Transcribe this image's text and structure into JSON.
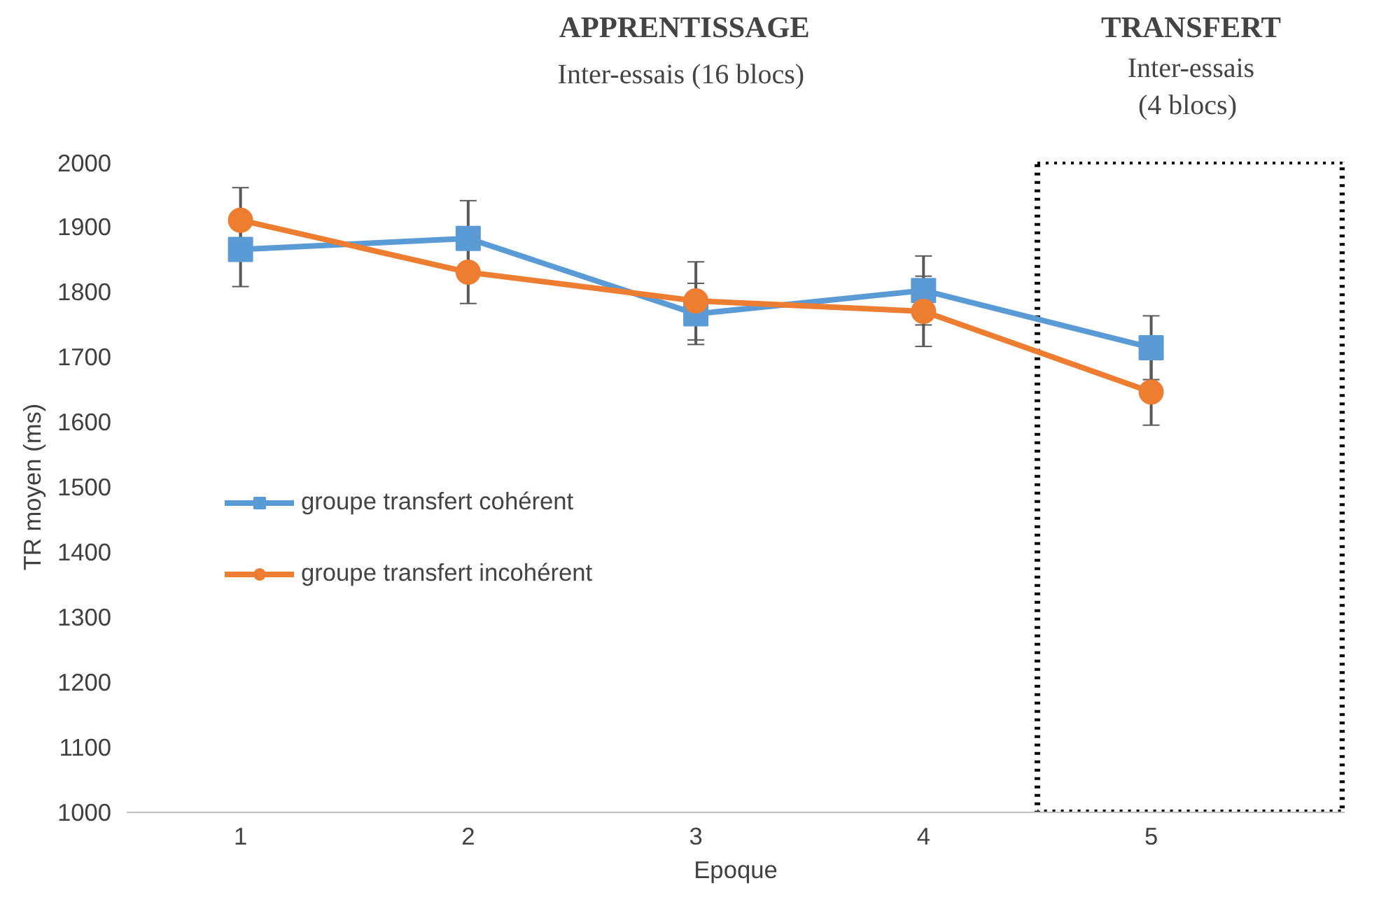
{
  "chart_data": {
    "type": "line",
    "xlabel": "Epoque",
    "ylabel": "TR moyen (ms)",
    "x": [
      1,
      2,
      3,
      4,
      5
    ],
    "xlim": [
      0.5,
      5.85
    ],
    "xticks": [
      1,
      2,
      3,
      4,
      5
    ],
    "ylim": [
      1000,
      2000
    ],
    "yticks": [
      1000,
      1100,
      1200,
      1300,
      1400,
      1500,
      1600,
      1700,
      1800,
      1900,
      2000
    ],
    "series": [
      {
        "name": "groupe transfert cohérent",
        "color": "#5b9bd5",
        "marker": "square",
        "values": [
          1865,
          1882,
          1766,
          1802,
          1714
        ],
        "errors": [
          57,
          58,
          47,
          53,
          49
        ]
      },
      {
        "name": "groupe transfert incohérent",
        "color": "#ed7d31",
        "marker": "circle",
        "values": [
          1910,
          1830,
          1786,
          1770,
          1646
        ],
        "errors": [
          50,
          48,
          60,
          54,
          51
        ]
      }
    ],
    "annotations": [
      "APPRENTISSAGE",
      "Inter-essais  (16 blocs)",
      "TRANSFERT",
      "Inter-essais\n (4 blocs)"
    ],
    "grid": false,
    "legend": "left",
    "line_style": "solid"
  }
}
